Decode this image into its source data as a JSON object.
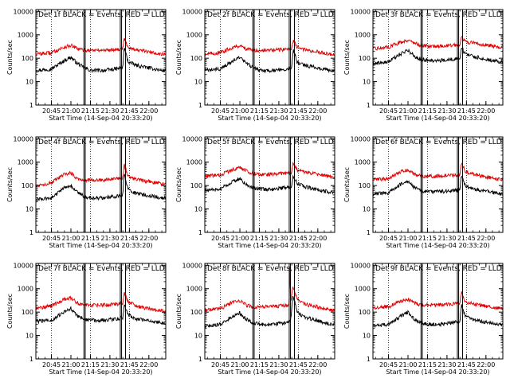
{
  "figure": {
    "background": "#ffffff",
    "events_color": "#000000",
    "lld_color": "#e00000",
    "xlabel": "Start Time (14-Sep-04 20:33:20)",
    "ylabel": "Counts/sec"
  },
  "chart_data": [
    {
      "type": "line",
      "title": "Det 1f BLACK = Events, RED = LLD",
      "xlabel": "Start Time (14-Sep-04 20:33:20)",
      "ylabel": "Counts/sec",
      "y_scale": "log",
      "ylim": [
        1,
        12000
      ],
      "xlim": [
        "20:33",
        "22:13"
      ],
      "x_ticks": [
        "20:45",
        "21:00",
        "21:15",
        "21:30",
        "21:45",
        "22:00"
      ],
      "y_ticks": [
        "1",
        "10",
        "100",
        "1000",
        "10000"
      ],
      "dotted_lines": [
        "20:45",
        "21:15",
        "21:45"
      ],
      "solid_lines": [
        "21:10",
        "21:11",
        "21:38",
        "21:39",
        "21:42"
      ],
      "series": [
        {
          "color": "#000000",
          "x": [
            "20:33",
            "20:45",
            "20:55",
            "21:00",
            "21:05",
            "21:10",
            "21:15",
            "21:25",
            "21:35",
            "21:40",
            "21:41",
            "21:44",
            "21:50",
            "22:10"
          ],
          "y": [
            30,
            35,
            80,
            110,
            60,
            40,
            30,
            30,
            35,
            40,
            300,
            70,
            50,
            30
          ]
        },
        {
          "color": "#e00000",
          "x": [
            "20:33",
            "20:45",
            "20:55",
            "21:00",
            "21:05",
            "21:10",
            "21:15",
            "21:25",
            "21:35",
            "21:40",
            "21:41",
            "21:44",
            "21:50",
            "22:10"
          ],
          "y": [
            150,
            170,
            300,
            350,
            250,
            220,
            220,
            220,
            240,
            260,
            700,
            300,
            230,
            150
          ]
        }
      ]
    },
    {
      "type": "line",
      "title": "Det 2f BLACK = Events, RED = LLD",
      "xlabel": "Start Time (14-Sep-04 20:33:20)",
      "ylabel": "Counts/sec",
      "y_scale": "log",
      "ylim": [
        1,
        12000
      ],
      "xlim": [
        "20:33",
        "22:13"
      ],
      "x_ticks": [
        "20:45",
        "21:00",
        "21:15",
        "21:30",
        "21:45",
        "22:00"
      ],
      "y_ticks": [
        "1",
        "10",
        "100",
        "1000",
        "10000"
      ],
      "dotted_lines": [
        "20:45",
        "21:15",
        "21:45"
      ],
      "solid_lines": [
        "21:10",
        "21:11",
        "21:38",
        "21:39",
        "21:42"
      ],
      "series": [
        {
          "color": "#000000",
          "x": [
            "20:33",
            "20:45",
            "20:55",
            "21:00",
            "21:05",
            "21:10",
            "21:15",
            "21:25",
            "21:35",
            "21:40",
            "21:41",
            "21:44",
            "21:50",
            "22:10"
          ],
          "y": [
            30,
            35,
            80,
            110,
            60,
            40,
            30,
            30,
            35,
            40,
            250,
            70,
            50,
            30
          ]
        },
        {
          "color": "#e00000",
          "x": [
            "20:33",
            "20:45",
            "20:55",
            "21:00",
            "21:05",
            "21:10",
            "21:15",
            "21:25",
            "21:35",
            "21:40",
            "21:41",
            "21:44",
            "21:50",
            "22:10"
          ],
          "y": [
            150,
            170,
            300,
            350,
            250,
            220,
            220,
            220,
            240,
            260,
            600,
            300,
            230,
            150
          ]
        }
      ]
    },
    {
      "type": "line",
      "title": "Det 3f BLACK = Events, RED = LLD",
      "xlabel": "Start Time (14-Sep-04 20:33:20)",
      "ylabel": "Counts/sec",
      "y_scale": "log",
      "ylim": [
        1,
        12000
      ],
      "xlim": [
        "20:33",
        "22:13"
      ],
      "x_ticks": [
        "20:45",
        "21:00",
        "21:15",
        "21:30",
        "21:45",
        "22:00"
      ],
      "y_ticks": [
        "1",
        "10",
        "100",
        "1000",
        "10000"
      ],
      "dotted_lines": [
        "20:45",
        "21:15",
        "21:45"
      ],
      "solid_lines": [
        "21:10",
        "21:11",
        "21:38",
        "21:39",
        "21:42"
      ],
      "series": [
        {
          "color": "#000000",
          "x": [
            "20:33",
            "20:45",
            "20:55",
            "21:00",
            "21:05",
            "21:10",
            "21:15",
            "21:25",
            "21:35",
            "21:40",
            "21:41",
            "21:44",
            "21:50",
            "22:10"
          ],
          "y": [
            60,
            70,
            160,
            220,
            120,
            90,
            80,
            80,
            90,
            100,
            300,
            150,
            120,
            70
          ]
        },
        {
          "color": "#e00000",
          "x": [
            "20:33",
            "20:45",
            "20:55",
            "21:00",
            "21:05",
            "21:10",
            "21:15",
            "21:25",
            "21:35",
            "21:40",
            "21:41",
            "21:44",
            "21:50",
            "22:10"
          ],
          "y": [
            250,
            300,
            500,
            600,
            450,
            350,
            330,
            330,
            350,
            380,
            900,
            500,
            450,
            300
          ]
        }
      ]
    },
    {
      "type": "line",
      "title": "Det 4f BLACK = Events, RED = LLD",
      "xlabel": "Start Time (14-Sep-04 20:33:20)",
      "ylabel": "Counts/sec",
      "y_scale": "log",
      "ylim": [
        1,
        12000
      ],
      "xlim": [
        "20:33",
        "22:13"
      ],
      "x_ticks": [
        "20:45",
        "21:00",
        "21:15",
        "21:30",
        "21:45",
        "22:00"
      ],
      "y_ticks": [
        "1",
        "10",
        "100",
        "1000",
        "10000"
      ],
      "dotted_lines": [
        "20:45",
        "21:15",
        "21:45"
      ],
      "solid_lines": [
        "21:10",
        "21:11",
        "21:38",
        "21:39",
        "21:42"
      ],
      "series": [
        {
          "color": "#000000",
          "x": [
            "20:33",
            "20:45",
            "20:55",
            "21:00",
            "21:05",
            "21:10",
            "21:15",
            "21:25",
            "21:35",
            "21:40",
            "21:41",
            "21:44",
            "21:50",
            "22:10"
          ],
          "y": [
            25,
            30,
            80,
            100,
            50,
            35,
            30,
            30,
            35,
            40,
            300,
            70,
            45,
            30
          ]
        },
        {
          "color": "#e00000",
          "x": [
            "20:33",
            "20:45",
            "20:55",
            "21:00",
            "21:05",
            "21:10",
            "21:15",
            "21:25",
            "21:35",
            "21:40",
            "21:41",
            "21:44",
            "21:50",
            "22:10"
          ],
          "y": [
            100,
            130,
            300,
            350,
            200,
            170,
            170,
            170,
            190,
            210,
            800,
            250,
            180,
            120
          ]
        }
      ]
    },
    {
      "type": "line",
      "title": "Det 5f BLACK = Events, RED = LLD",
      "xlabel": "Start Time (14-Sep-04 20:33:20)",
      "ylabel": "Counts/sec",
      "y_scale": "log",
      "ylim": [
        1,
        12000
      ],
      "xlim": [
        "20:33",
        "22:13"
      ],
      "x_ticks": [
        "20:45",
        "21:00",
        "21:15",
        "21:30",
        "21:45",
        "22:00"
      ],
      "y_ticks": [
        "1",
        "10",
        "100",
        "1000",
        "10000"
      ],
      "dotted_lines": [
        "20:45",
        "21:15",
        "21:45"
      ],
      "solid_lines": [
        "21:10",
        "21:11",
        "21:38",
        "21:39",
        "21:42"
      ],
      "series": [
        {
          "color": "#000000",
          "x": [
            "20:33",
            "20:45",
            "20:55",
            "21:00",
            "21:05",
            "21:10",
            "21:15",
            "21:25",
            "21:35",
            "21:40",
            "21:41",
            "21:44",
            "21:50",
            "22:10"
          ],
          "y": [
            60,
            70,
            150,
            200,
            110,
            80,
            70,
            70,
            80,
            90,
            250,
            130,
            90,
            50
          ]
        },
        {
          "color": "#e00000",
          "x": [
            "20:33",
            "20:45",
            "20:55",
            "21:00",
            "21:05",
            "21:10",
            "21:15",
            "21:25",
            "21:35",
            "21:40",
            "21:41",
            "21:44",
            "21:50",
            "22:10"
          ],
          "y": [
            250,
            280,
            500,
            600,
            420,
            330,
            300,
            310,
            330,
            360,
            900,
            480,
            380,
            240
          ]
        }
      ]
    },
    {
      "type": "line",
      "title": "Det 6f BLACK = Events, RED = LLD",
      "xlabel": "Start Time (14-Sep-04 20:33:20)",
      "ylabel": "Counts/sec",
      "y_scale": "log",
      "ylim": [
        1,
        12000
      ],
      "xlim": [
        "20:33",
        "22:13"
      ],
      "x_ticks": [
        "20:45",
        "21:00",
        "21:15",
        "21:30",
        "21:45",
        "22:00"
      ],
      "y_ticks": [
        "1",
        "10",
        "100",
        "1000",
        "10000"
      ],
      "dotted_lines": [
        "20:45",
        "21:15",
        "21:45"
      ],
      "solid_lines": [
        "21:10",
        "21:11",
        "21:38",
        "21:39",
        "21:42"
      ],
      "series": [
        {
          "color": "#000000",
          "x": [
            "20:33",
            "20:45",
            "20:55",
            "21:00",
            "21:05",
            "21:10",
            "21:15",
            "21:25",
            "21:35",
            "21:40",
            "21:41",
            "21:44",
            "21:50",
            "22:10"
          ],
          "y": [
            45,
            50,
            120,
            150,
            80,
            60,
            55,
            55,
            60,
            70,
            300,
            100,
            70,
            45
          ]
        },
        {
          "color": "#e00000",
          "x": [
            "20:33",
            "20:45",
            "20:55",
            "21:00",
            "21:05",
            "21:10",
            "21:15",
            "21:25",
            "21:35",
            "21:40",
            "21:41",
            "21:44",
            "21:50",
            "22:10"
          ],
          "y": [
            180,
            200,
            400,
            450,
            300,
            250,
            250,
            260,
            280,
            300,
            1000,
            400,
            300,
            180
          ]
        }
      ]
    },
    {
      "type": "line",
      "title": "Det 7f BLACK = Events, RED = LLD",
      "xlabel": "Start Time (14-Sep-04 20:33:20)",
      "ylabel": "Counts/sec",
      "y_scale": "log",
      "ylim": [
        1,
        12000
      ],
      "xlim": [
        "20:33",
        "22:13"
      ],
      "x_ticks": [
        "20:45",
        "21:00",
        "21:15",
        "21:30",
        "21:45",
        "22:00"
      ],
      "y_ticks": [
        "1",
        "10",
        "100",
        "1000",
        "10000"
      ],
      "dotted_lines": [
        "20:45",
        "21:15",
        "21:45"
      ],
      "solid_lines": [
        "21:10",
        "21:11",
        "21:38",
        "21:39",
        "21:42"
      ],
      "series": [
        {
          "color": "#000000",
          "x": [
            "20:33",
            "20:45",
            "20:55",
            "21:00",
            "21:05",
            "21:10",
            "21:15",
            "21:25",
            "21:35",
            "21:40",
            "21:41",
            "21:44",
            "21:50",
            "22:10"
          ],
          "y": [
            40,
            45,
            100,
            140,
            70,
            50,
            45,
            45,
            50,
            60,
            200,
            80,
            50,
            35
          ]
        },
        {
          "color": "#e00000",
          "x": [
            "20:33",
            "20:45",
            "20:55",
            "21:00",
            "21:05",
            "21:10",
            "21:15",
            "21:25",
            "21:35",
            "21:40",
            "21:41",
            "21:44",
            "21:50",
            "22:10"
          ],
          "y": [
            150,
            180,
            350,
            400,
            250,
            200,
            200,
            200,
            220,
            250,
            700,
            280,
            180,
            110
          ]
        }
      ]
    },
    {
      "type": "line",
      "title": "Det 8f BLACK = Events, RED = LLD",
      "xlabel": "Start Time (14-Sep-04 20:33:20)",
      "ylabel": "Counts/sec",
      "y_scale": "log",
      "ylim": [
        1,
        12000
      ],
      "xlim": [
        "20:33",
        "22:13"
      ],
      "x_ticks": [
        "20:45",
        "21:00",
        "21:15",
        "21:30",
        "21:45",
        "22:00"
      ],
      "y_ticks": [
        "1",
        "10",
        "100",
        "1000",
        "10000"
      ],
      "dotted_lines": [
        "20:45",
        "21:15",
        "21:45"
      ],
      "solid_lines": [
        "21:10",
        "21:11",
        "21:38",
        "21:39",
        "21:42"
      ],
      "series": [
        {
          "color": "#000000",
          "x": [
            "20:33",
            "20:45",
            "20:55",
            "21:00",
            "21:05",
            "21:10",
            "21:15",
            "21:25",
            "21:35",
            "21:38",
            "21:38.5",
            "21:39",
            "21:41",
            "21:44",
            "21:50",
            "22:10"
          ],
          "y": [
            25,
            30,
            70,
            90,
            50,
            35,
            30,
            30,
            35,
            40,
            40,
            40,
            500,
            100,
            60,
            30
          ]
        },
        {
          "color": "#e00000",
          "x": [
            "20:33",
            "20:45",
            "20:55",
            "21:00",
            "21:05",
            "21:10",
            "21:15",
            "21:25",
            "21:35",
            "21:38",
            "21:38.5",
            "21:39",
            "21:41",
            "21:44",
            "21:50",
            "22:10"
          ],
          "y": [
            120,
            140,
            280,
            320,
            200,
            160,
            160,
            170,
            190,
            200,
            12000,
            250,
            1200,
            350,
            220,
            120
          ]
        }
      ]
    },
    {
      "type": "line",
      "title": "Det 9f BLACK = Events, RED = LLD",
      "xlabel": "Start Time (14-Sep-04 20:33:20)",
      "ylabel": "Counts/sec",
      "y_scale": "log",
      "ylim": [
        1,
        12000
      ],
      "xlim": [
        "20:33",
        "22:13"
      ],
      "x_ticks": [
        "20:45",
        "21:00",
        "21:15",
        "21:30",
        "21:45",
        "22:00"
      ],
      "y_ticks": [
        "1",
        "10",
        "100",
        "1000",
        "10000"
      ],
      "dotted_lines": [
        "20:45",
        "21:15",
        "21:45"
      ],
      "solid_lines": [
        "21:10",
        "21:11",
        "21:38",
        "21:39",
        "21:42"
      ],
      "series": [
        {
          "color": "#000000",
          "x": [
            "20:33",
            "20:45",
            "20:55",
            "21:00",
            "21:05",
            "21:10",
            "21:15",
            "21:25",
            "21:35",
            "21:40",
            "21:41",
            "21:44",
            "21:50",
            "22:10"
          ],
          "y": [
            25,
            30,
            70,
            100,
            50,
            35,
            30,
            30,
            35,
            40,
            200,
            70,
            45,
            30
          ]
        },
        {
          "color": "#e00000",
          "x": [
            "20:33",
            "20:45",
            "20:55",
            "21:00",
            "21:05",
            "21:10",
            "21:15",
            "21:25",
            "21:35",
            "21:40",
            "21:41",
            "21:44",
            "21:50",
            "22:10"
          ],
          "y": [
            150,
            170,
            300,
            350,
            250,
            200,
            200,
            200,
            220,
            250,
            700,
            280,
            220,
            150
          ]
        }
      ]
    }
  ]
}
